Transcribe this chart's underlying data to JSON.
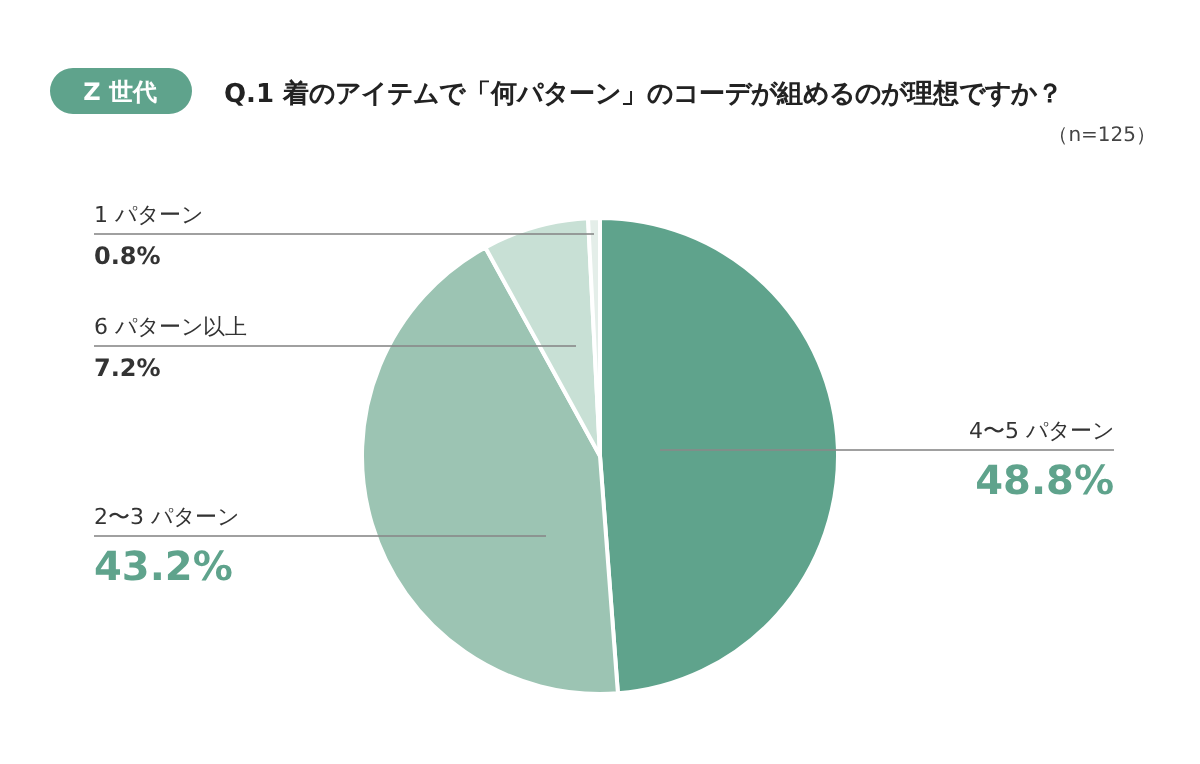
{
  "chart_data": {
    "type": "pie",
    "title": "Q.1 着のアイテムで「何パターン」のコーデが組めるのが理想ですか？",
    "subtitle": "Z 世代",
    "annotations": [
      "（n=125）"
    ],
    "categories": [
      "4〜5 パターン",
      "2〜3 パターン",
      "6 パターン以上",
      "1 パターン"
    ],
    "values": [
      48.8,
      43.2,
      7.2,
      0.8
    ],
    "value_labels": [
      "48.8%",
      "43.2%",
      "7.2%",
      "0.8%"
    ],
    "colors": [
      "#5fa38c",
      "#9cc4b3",
      "#c8e0d5",
      "#e4eee9"
    ],
    "legend": false
  }
}
